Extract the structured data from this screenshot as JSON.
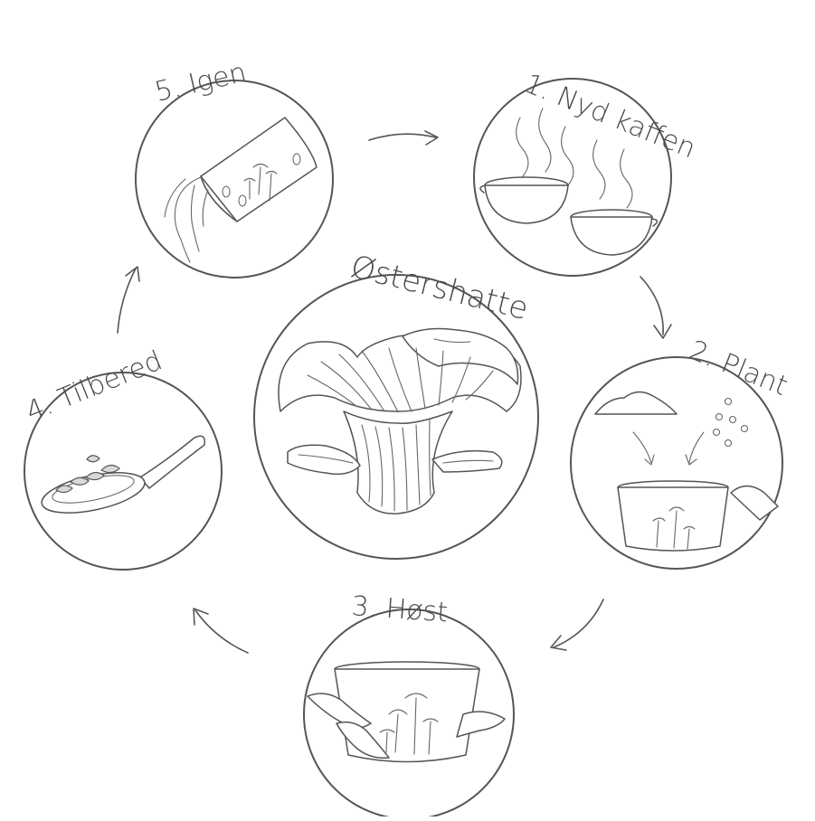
{
  "center": {
    "title": "Østershatte"
  },
  "steps": [
    {
      "label": "1. Nyd kaffen"
    },
    {
      "label": "2. Plant"
    },
    {
      "label": "3. Høst"
    },
    {
      "label": "4. Tilbered"
    },
    {
      "label": "5. Igen"
    }
  ],
  "colors": {
    "line": "#555555",
    "background": "#ffffff"
  }
}
